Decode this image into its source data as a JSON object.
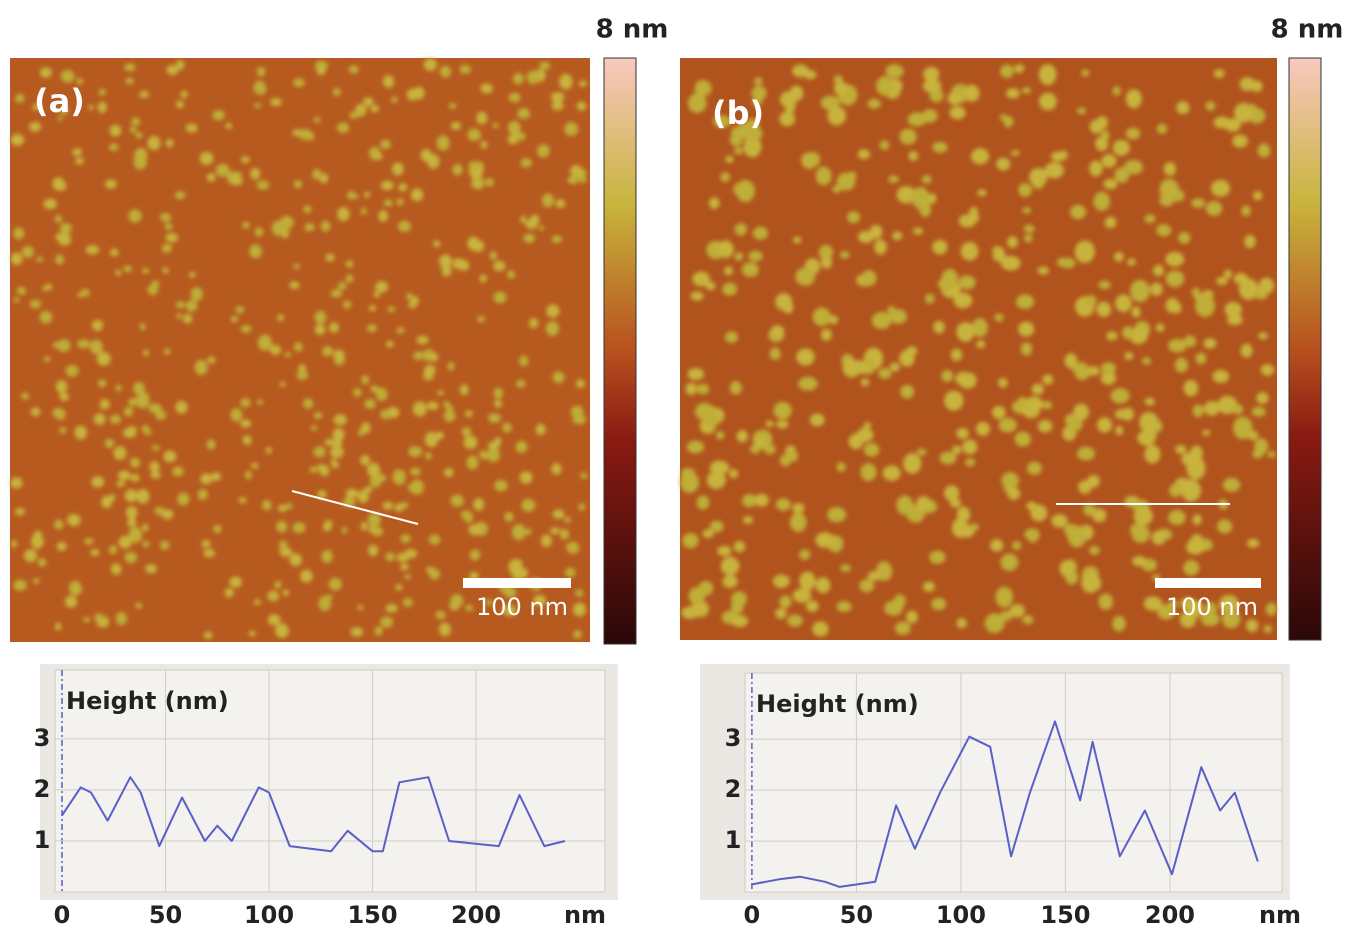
{
  "panels": [
    {
      "label": "(a)",
      "colorbar_label": "8 nm",
      "scale_bar": "100 nm"
    },
    {
      "label": "(b)",
      "colorbar_label": "8 nm",
      "scale_bar": "100 nm"
    }
  ],
  "chart_data": [
    {
      "type": "line",
      "y_label": "Height (nm)",
      "x_unit": "nm",
      "color": "#5a5fc8",
      "x": [
        0,
        9,
        14,
        22,
        33,
        38,
        47,
        58,
        69,
        75,
        82,
        95,
        100,
        110,
        130,
        138,
        150,
        155,
        163,
        177,
        187,
        211,
        221,
        233,
        243
      ],
      "values": [
        1.5,
        2.05,
        1.95,
        1.4,
        2.25,
        1.95,
        0.9,
        1.85,
        1.0,
        1.3,
        1.0,
        2.05,
        1.95,
        0.9,
        0.8,
        1.2,
        0.8,
        0.8,
        2.15,
        2.25,
        1.0,
        0.9,
        1.9,
        0.9,
        1.0
      ],
      "xlim": [
        -3.4,
        262.3
      ],
      "ylim": [
        0,
        4.35
      ],
      "xticks": [
        0,
        50,
        100,
        150,
        200
      ],
      "yticks": [
        1,
        2,
        3
      ],
      "grid": true
    },
    {
      "type": "line",
      "y_label": "Height (nm)",
      "x_unit": "nm",
      "color": "#5a5fc8",
      "x": [
        0,
        13,
        23,
        35,
        42,
        59,
        69,
        78,
        90,
        104,
        114,
        124,
        133,
        145,
        157,
        163,
        176,
        188,
        201,
        215,
        224,
        231,
        242
      ],
      "values": [
        0.15,
        0.25,
        0.3,
        0.2,
        0.1,
        0.2,
        1.7,
        0.85,
        1.95,
        3.05,
        2.85,
        0.7,
        1.95,
        3.35,
        1.8,
        2.95,
        0.7,
        1.6,
        0.35,
        2.45,
        1.6,
        1.95,
        0.6
      ],
      "xlim": [
        -3.3,
        253.6
      ],
      "ylim": [
        0,
        4.3
      ],
      "xticks": [
        0,
        50,
        100,
        150,
        200
      ],
      "yticks": [
        1,
        2,
        3
      ],
      "grid": true
    }
  ]
}
